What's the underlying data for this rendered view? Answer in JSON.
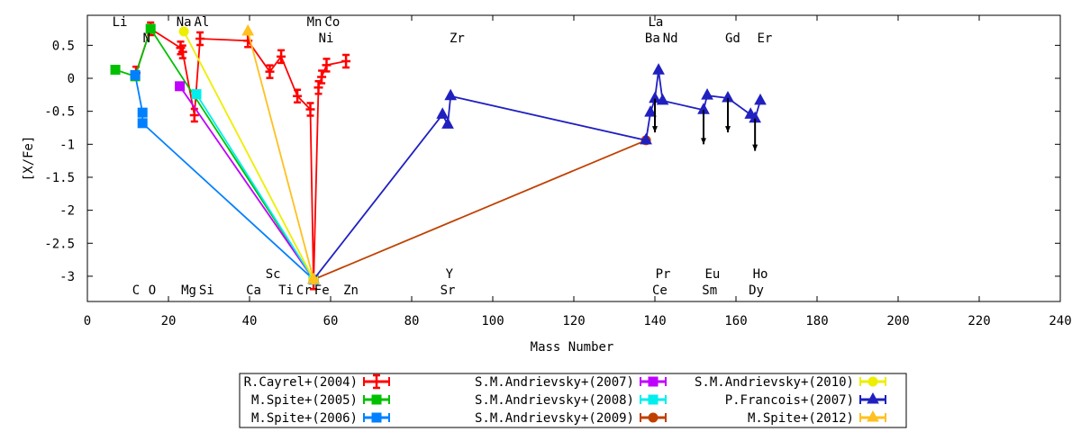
{
  "chart_data": {
    "type": "line",
    "xlabel": "Mass Number",
    "ylabel": "[X/Fe]",
    "xlim": [
      0,
      240
    ],
    "ylim": [
      -3.383,
      0.955
    ],
    "xticks": [
      0,
      20,
      40,
      60,
      80,
      100,
      120,
      140,
      160,
      180,
      200,
      220,
      240
    ],
    "yticks": [
      0.5,
      0,
      -0.5,
      -1,
      -1.5,
      -2,
      -2.5,
      -3
    ],
    "ytick_labels": [
      "0.5",
      "0",
      "-0.5",
      "-1",
      "-1.5",
      "-2",
      "-2.5",
      "-3"
    ],
    "legend_position": "bottom-center",
    "element_labels_top": [
      {
        "text": "Li",
        "x": 8,
        "row": 1
      },
      {
        "text": "Na",
        "x": 23.8,
        "row": 1
      },
      {
        "text": "Al",
        "x": 27.6,
        "row": 1
      },
      {
        "text": "Mn",
        "x": 56,
        "row": 1
      },
      {
        "text": "Co",
        "x": 59.7,
        "row": 1
      },
      {
        "text": "La",
        "x": 140.2,
        "row": 1
      },
      {
        "text": "N",
        "x": 14.6,
        "row": 2
      },
      {
        "text": "Ni",
        "x": 58.9,
        "row": 2
      },
      {
        "text": "Zr",
        "x": 91.2,
        "row": 2
      },
      {
        "text": "Ba",
        "x": 139.4,
        "row": 2
      },
      {
        "text": "Nd",
        "x": 143,
        "row": 2
      },
      {
        "text": "Gd",
        "x": 159.2,
        "row": 2
      },
      {
        "text": "Er",
        "x": 167.1,
        "row": 2
      }
    ],
    "element_labels_bottom": [
      {
        "text": "Sc",
        "x": 45.8,
        "row": 1
      },
      {
        "text": "Y",
        "x": 89.3,
        "row": 1
      },
      {
        "text": "Pr",
        "x": 142,
        "row": 1
      },
      {
        "text": "Eu",
        "x": 154.2,
        "row": 1
      },
      {
        "text": "Ho",
        "x": 166,
        "row": 1
      },
      {
        "text": "C",
        "x": 12,
        "row": 2
      },
      {
        "text": "O",
        "x": 16,
        "row": 2
      },
      {
        "text": "Mg",
        "x": 25,
        "row": 2
      },
      {
        "text": "Si",
        "x": 28.8,
        "row": 2
      },
      {
        "text": "Ca",
        "x": 41,
        "row": 2
      },
      {
        "text": "Ti",
        "x": 49,
        "row": 2
      },
      {
        "text": "Cr",
        "x": 53,
        "row": 2
      },
      {
        "text": "Fe",
        "x": 57,
        "row": 2
      },
      {
        "text": "Zn",
        "x": 65,
        "row": 2
      },
      {
        "text": "Sr",
        "x": 88.9,
        "row": 2
      },
      {
        "text": "Ce",
        "x": 141.2,
        "row": 2
      },
      {
        "text": "Sm",
        "x": 153.5,
        "row": 2
      },
      {
        "text": "Dy",
        "x": 165,
        "row": 2
      }
    ],
    "series": [
      {
        "name": "R.Cayrel+(2004)",
        "color": "#ff0000",
        "marker": "plus",
        "x": [
          12,
          15.6,
          23,
          23.5,
          26.4,
          27.8,
          39.6,
          45,
          47.8,
          51.8,
          55,
          55.8,
          57,
          57.8,
          59,
          63.8
        ],
        "y": [
          0.08,
          0.75,
          0.46,
          0.4,
          -0.56,
          0.6,
          0.57,
          0.1,
          0.33,
          -0.27,
          -0.47,
          -3.1,
          -0.14,
          0.02,
          0.2,
          0.26
        ]
      },
      {
        "name": "M.Spite+(2005)",
        "color": "#00c000",
        "marker": "square",
        "x": [
          6.9,
          11.8,
          15.6,
          55.8
        ],
        "y": [
          0.13,
          0.03,
          0.75,
          -3.05
        ]
      },
      {
        "name": "M.Spite+(2006)",
        "color": "#0080ff",
        "marker": "square",
        "x": [
          11.8,
          13.6,
          13.6,
          55.8
        ],
        "y": [
          0.05,
          -0.52,
          -0.68,
          -3.05
        ]
      },
      {
        "name": "S.M.Andrievsky+(2007)",
        "color": "#c000ff",
        "marker": "square",
        "x": [
          22.8,
          55.8
        ],
        "y": [
          -0.12,
          -3.05
        ]
      },
      {
        "name": "S.M.Andrievsky+(2008)",
        "color": "#00eeee",
        "marker": "square",
        "x": [
          26.9,
          55.8
        ],
        "y": [
          -0.24,
          -3.05
        ]
      },
      {
        "name": "S.M.Andrievsky+(2009)",
        "color": "#c04000",
        "marker": "circle",
        "x": [
          55.8,
          137.8
        ],
        "y": [
          -3.05,
          -0.94
        ]
      },
      {
        "name": "S.M.Andrievsky+(2010)",
        "color": "#eeee00",
        "marker": "circle",
        "x": [
          23.8,
          55.8
        ],
        "y": [
          0.71,
          -3.05
        ]
      },
      {
        "name": "P.Francois+(2007)",
        "color": "#2020c0",
        "marker": "triangle",
        "x": [
          55.8,
          87.6,
          88.9,
          89.6,
          137.8,
          138.9,
          140,
          140.9,
          141.9,
          152,
          152.9,
          158,
          163.6,
          164.7,
          166
        ],
        "y": [
          -3.05,
          -0.55,
          -0.7,
          -0.27,
          -0.94,
          -0.52,
          -0.31,
          0.12,
          -0.34,
          -0.48,
          -0.26,
          -0.3,
          -0.55,
          -0.61,
          -0.34
        ]
      },
      {
        "name": "M.Spite+(2012)",
        "color": "#ffc020",
        "marker": "triangle",
        "x": [
          39.6,
          55.8
        ],
        "y": [
          0.71,
          -3.05
        ]
      }
    ],
    "upper_limits": [
      {
        "x": 140,
        "from": -0.31,
        "to": -0.82
      },
      {
        "x": 152,
        "from": -0.48,
        "to": -1.0
      },
      {
        "x": 158,
        "from": -0.3,
        "to": -0.82
      },
      {
        "x": 164.7,
        "from": -0.61,
        "to": -1.1
      }
    ]
  }
}
